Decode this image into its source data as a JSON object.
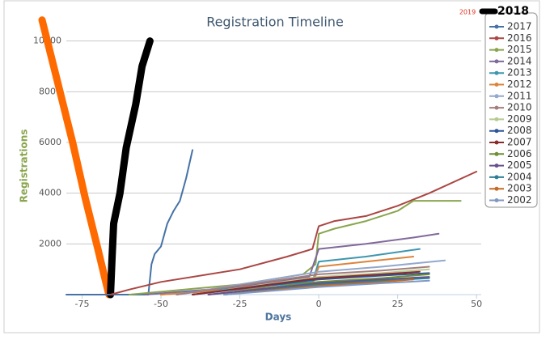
{
  "chart_data": {
    "type": "line",
    "title": "Registration Timeline",
    "x_label": "Days",
    "y_label": "Registrations",
    "xlim": [
      -80,
      51.5
    ],
    "xticks": [
      -75,
      -50,
      -25,
      0,
      25,
      50
    ],
    "ylim": [
      0,
      10500
    ],
    "yticks": [
      2000,
      4000,
      6000,
      8000,
      10000
    ],
    "grid": true,
    "series": [
      {
        "name": "2019",
        "color": "#ff6a00",
        "handwritten": true,
        "x": [
          -87.7,
          -83,
          -78,
          -74,
          -70,
          -67.5,
          -66.5
        ],
        "values": [
          10830,
          8500,
          6000,
          3800,
          1800,
          500,
          0
        ]
      },
      {
        "name": "2018",
        "color": "#000000",
        "handwritten": true,
        "x": [
          -66,
          -65.5,
          -65,
          -63,
          -61,
          -58,
          -56,
          -53.5
        ],
        "values": [
          0,
          1500,
          2800,
          4000,
          5800,
          7500,
          9000,
          10000
        ]
      },
      {
        "name": "2017",
        "color": "#4572a7",
        "x": [
          -80,
          -54,
          -53,
          -52,
          -50,
          -48,
          -46,
          -44,
          -42,
          -40
        ],
        "values": [
          0,
          0,
          1200,
          1600,
          1900,
          2800,
          3300,
          3700,
          4600,
          5700
        ]
      },
      {
        "name": "2016",
        "color": "#aa4643",
        "x": [
          -66,
          -60,
          -50,
          -25,
          -10,
          -2,
          0,
          5,
          15,
          25,
          35,
          50
        ],
        "values": [
          0,
          200,
          500,
          1000,
          1500,
          1800,
          2700,
          2900,
          3100,
          3500,
          4000,
          4850
        ]
      },
      {
        "name": "2015",
        "color": "#89a54e",
        "x": [
          -60,
          -25,
          -5,
          -1,
          0,
          5,
          15,
          25,
          30,
          45
        ],
        "values": [
          0,
          400,
          800,
          1200,
          2400,
          2600,
          2900,
          3300,
          3700,
          3700
        ]
      },
      {
        "name": "2014",
        "color": "#80699b",
        "x": [
          -55,
          -25,
          -3,
          0,
          15,
          30,
          38
        ],
        "values": [
          0,
          300,
          700,
          1800,
          2000,
          2250,
          2400
        ]
      },
      {
        "name": "2013",
        "color": "#3d96ae",
        "x": [
          -50,
          -2,
          0,
          15,
          32
        ],
        "values": [
          0,
          500,
          1300,
          1500,
          1800
        ]
      },
      {
        "name": "2012",
        "color": "#db843d",
        "x": [
          -50,
          -2,
          0,
          15,
          30
        ],
        "values": [
          0,
          400,
          1100,
          1300,
          1500
        ]
      },
      {
        "name": "2011",
        "color": "#92a8cd",
        "x": [
          -45,
          0,
          20,
          40
        ],
        "values": [
          0,
          900,
          1100,
          1350
        ]
      },
      {
        "name": "2010",
        "color": "#a47d7c",
        "x": [
          -45,
          0,
          20,
          35
        ],
        "values": [
          0,
          800,
          950,
          1100
        ]
      },
      {
        "name": "2009",
        "color": "#b5ca92",
        "x": [
          -40,
          0,
          20,
          35
        ],
        "values": [
          0,
          700,
          850,
          1000
        ]
      },
      {
        "name": "2008",
        "color": "#2f5597",
        "x": [
          -40,
          0,
          20,
          35
        ],
        "values": [
          0,
          600,
          750,
          850
        ]
      },
      {
        "name": "2007",
        "color": "#8b2a2a",
        "x": [
          -40,
          0,
          20,
          32
        ],
        "values": [
          0,
          650,
          800,
          900
        ]
      },
      {
        "name": "2006",
        "color": "#6e8f34",
        "x": [
          -35,
          0,
          20,
          35
        ],
        "values": [
          0,
          500,
          650,
          800
        ]
      },
      {
        "name": "2005",
        "color": "#6a4f8b",
        "x": [
          -35,
          0,
          20,
          35
        ],
        "values": [
          0,
          450,
          600,
          700
        ]
      },
      {
        "name": "2004",
        "color": "#2c7f94",
        "x": [
          -30,
          0,
          20,
          35
        ],
        "values": [
          0,
          400,
          550,
          650
        ]
      },
      {
        "name": "2003",
        "color": "#c46a24",
        "x": [
          -30,
          0,
          20,
          30
        ],
        "values": [
          0,
          350,
          500,
          600
        ]
      },
      {
        "name": "2002",
        "color": "#7f97c4",
        "x": [
          -30,
          0,
          20,
          35
        ],
        "values": [
          0,
          300,
          450,
          550
        ]
      }
    ]
  }
}
